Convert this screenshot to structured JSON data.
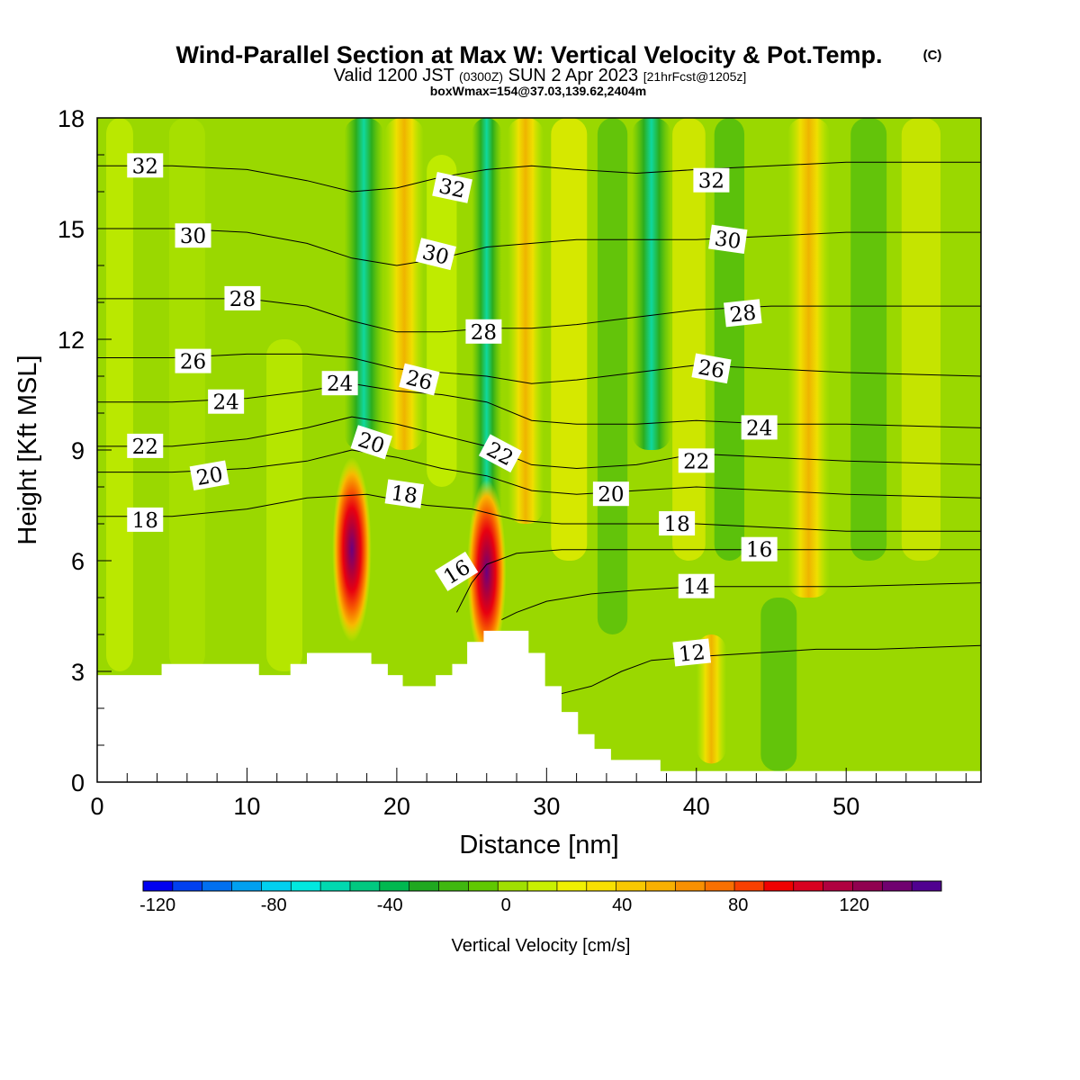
{
  "header": {
    "title": "Wind-Parallel Section at Max W: Vertical Velocity & Pot.Temp.",
    "copyright": "(C)",
    "valid_prefix": "Valid 1200 JST",
    "valid_zulu": "(0300Z)",
    "valid_date": "SUN 2 Apr 2023",
    "valid_forecast": "[21hrFcst@1205z]",
    "box_info": "boxWmax=154@37.03,139.62,2404m"
  },
  "chart_data": {
    "type": "heatmap",
    "xlabel": "Distance [nm]",
    "ylabel": "Height [Kft MSL]",
    "xlim": [
      0,
      59
    ],
    "ylim": [
      0,
      18
    ],
    "x_ticks": [
      0,
      10,
      20,
      30,
      40,
      50
    ],
    "y_ticks": [
      0,
      3,
      6,
      9,
      12,
      15,
      18
    ],
    "fill_variable": "Vertical Velocity [cm/s]",
    "contour_variable": "Potential Temperature",
    "colorbar": {
      "label": "Vertical Velocity [cm/s]",
      "min": -125,
      "max": 150,
      "ticks": [
        -120,
        -80,
        -40,
        0,
        40,
        80,
        120
      ],
      "colors": [
        "#0000f0",
        "#0040f0",
        "#0070f0",
        "#00a0f0",
        "#00d0f0",
        "#00e8e0",
        "#00d8b0",
        "#00c880",
        "#00b850",
        "#20a820",
        "#40b810",
        "#60c800",
        "#a0e000",
        "#c8f000",
        "#f0f000",
        "#f8e000",
        "#f8c800",
        "#f8b000",
        "#f89000",
        "#f87000",
        "#f84000",
        "#f00000",
        "#d80020",
        "#b00040",
        "#900050",
        "#700070",
        "#500090"
      ]
    },
    "terrain_profile": [
      [
        0,
        2.9
      ],
      [
        4.3,
        2.9
      ],
      [
        4.3,
        3.2
      ],
      [
        10.8,
        3.2
      ],
      [
        10.8,
        2.9
      ],
      [
        12.9,
        2.9
      ],
      [
        12.9,
        3.2
      ],
      [
        14.0,
        3.2
      ],
      [
        14.0,
        3.5
      ],
      [
        18.3,
        3.5
      ],
      [
        18.3,
        3.2
      ],
      [
        19.4,
        3.2
      ],
      [
        19.4,
        2.9
      ],
      [
        20.4,
        2.9
      ],
      [
        20.4,
        2.6
      ],
      [
        22.6,
        2.6
      ],
      [
        22.6,
        2.9
      ],
      [
        23.7,
        2.9
      ],
      [
        23.7,
        3.2
      ],
      [
        24.7,
        3.2
      ],
      [
        24.7,
        3.8
      ],
      [
        25.8,
        3.8
      ],
      [
        25.8,
        4.1
      ],
      [
        28.8,
        4.1
      ],
      [
        28.8,
        3.5
      ],
      [
        29.9,
        3.5
      ],
      [
        29.9,
        2.6
      ],
      [
        31.0,
        2.6
      ],
      [
        31.0,
        1.9
      ],
      [
        32.1,
        1.9
      ],
      [
        32.1,
        1.3
      ],
      [
        33.2,
        1.3
      ],
      [
        33.2,
        0.9
      ],
      [
        34.3,
        0.9
      ],
      [
        34.3,
        0.6
      ],
      [
        37.6,
        0.6
      ],
      [
        37.6,
        0.3
      ],
      [
        59,
        0.3
      ]
    ],
    "updrafts": [
      {
        "x": 17.0,
        "y": 6.3,
        "w": 154
      },
      {
        "x": 26.0,
        "y": 5.7,
        "w": 120
      }
    ],
    "isentropes": [
      {
        "value": 12,
        "points": [
          [
            31,
            2.4
          ],
          [
            33,
            2.6
          ],
          [
            35,
            3.0
          ],
          [
            37,
            3.3
          ],
          [
            40,
            3.4
          ],
          [
            44,
            3.5
          ],
          [
            48,
            3.6
          ],
          [
            52,
            3.6
          ],
          [
            59,
            3.7
          ]
        ]
      },
      {
        "value": 14,
        "points": [
          [
            27,
            4.4
          ],
          [
            28,
            4.6
          ],
          [
            30,
            4.9
          ],
          [
            33,
            5.1
          ],
          [
            36,
            5.2
          ],
          [
            40,
            5.3
          ],
          [
            45,
            5.3
          ],
          [
            50,
            5.3
          ],
          [
            59,
            5.4
          ]
        ]
      },
      {
        "value": 16,
        "points": [
          [
            24,
            4.6
          ],
          [
            25,
            5.4
          ],
          [
            26,
            5.9
          ],
          [
            28,
            6.2
          ],
          [
            31,
            6.3
          ],
          [
            35,
            6.3
          ],
          [
            40,
            6.3
          ],
          [
            45,
            6.3
          ],
          [
            50,
            6.3
          ],
          [
            59,
            6.3
          ]
        ]
      },
      {
        "value": 18,
        "points": [
          [
            0,
            7.2
          ],
          [
            5,
            7.2
          ],
          [
            10,
            7.4
          ],
          [
            14,
            7.7
          ],
          [
            18,
            7.8
          ],
          [
            22,
            7.5
          ],
          [
            25,
            7.4
          ],
          [
            28,
            7.1
          ],
          [
            31,
            7.0
          ],
          [
            35,
            7.0
          ],
          [
            40,
            7.0
          ],
          [
            45,
            6.9
          ],
          [
            50,
            6.8
          ],
          [
            59,
            6.8
          ]
        ]
      },
      {
        "value": 20,
        "points": [
          [
            0,
            8.4
          ],
          [
            5,
            8.4
          ],
          [
            10,
            8.5
          ],
          [
            14,
            8.7
          ],
          [
            17,
            9.0
          ],
          [
            20,
            8.8
          ],
          [
            23,
            8.5
          ],
          [
            26,
            8.3
          ],
          [
            29,
            7.9
          ],
          [
            32,
            7.8
          ],
          [
            36,
            7.9
          ],
          [
            40,
            8.0
          ],
          [
            45,
            7.9
          ],
          [
            50,
            7.8
          ],
          [
            59,
            7.7
          ]
        ]
      },
      {
        "value": 22,
        "points": [
          [
            0,
            9.1
          ],
          [
            5,
            9.1
          ],
          [
            10,
            9.3
          ],
          [
            14,
            9.6
          ],
          [
            17,
            9.9
          ],
          [
            20,
            9.7
          ],
          [
            23,
            9.4
          ],
          [
            26,
            9.1
          ],
          [
            29,
            8.6
          ],
          [
            32,
            8.5
          ],
          [
            36,
            8.6
          ],
          [
            40,
            8.9
          ],
          [
            45,
            8.8
          ],
          [
            50,
            8.7
          ],
          [
            59,
            8.6
          ]
        ]
      },
      {
        "value": 24,
        "points": [
          [
            0,
            10.3
          ],
          [
            5,
            10.3
          ],
          [
            10,
            10.4
          ],
          [
            14,
            10.6
          ],
          [
            17,
            10.8
          ],
          [
            20,
            10.6
          ],
          [
            23,
            10.5
          ],
          [
            26,
            10.3
          ],
          [
            29,
            9.8
          ],
          [
            32,
            9.7
          ],
          [
            36,
            9.7
          ],
          [
            40,
            9.8
          ],
          [
            45,
            9.7
          ],
          [
            50,
            9.7
          ],
          [
            59,
            9.6
          ]
        ]
      },
      {
        "value": 26,
        "points": [
          [
            0,
            11.5
          ],
          [
            5,
            11.5
          ],
          [
            10,
            11.6
          ],
          [
            14,
            11.6
          ],
          [
            17,
            11.5
          ],
          [
            20,
            11.2
          ],
          [
            23,
            11.1
          ],
          [
            26,
            11.0
          ],
          [
            29,
            10.8
          ],
          [
            32,
            10.9
          ],
          [
            36,
            11.1
          ],
          [
            40,
            11.3
          ],
          [
            45,
            11.2
          ],
          [
            50,
            11.1
          ],
          [
            59,
            11.0
          ]
        ]
      },
      {
        "value": 28,
        "points": [
          [
            0,
            13.1
          ],
          [
            5,
            13.1
          ],
          [
            10,
            13.1
          ],
          [
            14,
            12.9
          ],
          [
            17,
            12.5
          ],
          [
            20,
            12.2
          ],
          [
            23,
            12.2
          ],
          [
            26,
            12.3
          ],
          [
            29,
            12.3
          ],
          [
            32,
            12.4
          ],
          [
            36,
            12.6
          ],
          [
            40,
            12.8
          ],
          [
            45,
            12.9
          ],
          [
            50,
            12.9
          ],
          [
            59,
            12.9
          ]
        ]
      },
      {
        "value": 30,
        "points": [
          [
            0,
            15.0
          ],
          [
            5,
            15.0
          ],
          [
            10,
            14.9
          ],
          [
            14,
            14.6
          ],
          [
            17,
            14.2
          ],
          [
            20,
            14.0
          ],
          [
            23,
            14.2
          ],
          [
            26,
            14.5
          ],
          [
            29,
            14.6
          ],
          [
            32,
            14.7
          ],
          [
            36,
            14.7
          ],
          [
            40,
            14.7
          ],
          [
            45,
            14.8
          ],
          [
            50,
            14.9
          ],
          [
            59,
            14.9
          ]
        ]
      },
      {
        "value": 32,
        "points": [
          [
            0,
            16.7
          ],
          [
            5,
            16.7
          ],
          [
            10,
            16.6
          ],
          [
            14,
            16.3
          ],
          [
            17,
            16.0
          ],
          [
            20,
            16.1
          ],
          [
            23,
            16.4
          ],
          [
            26,
            16.6
          ],
          [
            29,
            16.7
          ],
          [
            32,
            16.6
          ],
          [
            36,
            16.5
          ],
          [
            40,
            16.6
          ],
          [
            45,
            16.7
          ],
          [
            50,
            16.8
          ],
          [
            59,
            16.8
          ]
        ]
      }
    ],
    "contour_labels": [
      {
        "text": "32",
        "x": 3.2,
        "y": 16.7,
        "rot": 0
      },
      {
        "text": "32",
        "x": 23.7,
        "y": 16.1,
        "rot": 12
      },
      {
        "text": "32",
        "x": 41.0,
        "y": 16.3,
        "rot": 0
      },
      {
        "text": "30",
        "x": 6.4,
        "y": 14.8,
        "rot": 0
      },
      {
        "text": "30",
        "x": 22.6,
        "y": 14.3,
        "rot": 14
      },
      {
        "text": "30",
        "x": 42.1,
        "y": 14.7,
        "rot": 8
      },
      {
        "text": "28",
        "x": 9.7,
        "y": 13.1,
        "rot": 0
      },
      {
        "text": "28",
        "x": 25.8,
        "y": 12.2,
        "rot": 0
      },
      {
        "text": "28",
        "x": 43.1,
        "y": 12.7,
        "rot": -6
      },
      {
        "text": "26",
        "x": 6.4,
        "y": 11.4,
        "rot": 0
      },
      {
        "text": "26",
        "x": 21.5,
        "y": 10.9,
        "rot": 14
      },
      {
        "text": "26",
        "x": 41.0,
        "y": 11.2,
        "rot": 10
      },
      {
        "text": "24",
        "x": 16.2,
        "y": 10.8,
        "rot": 0
      },
      {
        "text": "24",
        "x": 8.6,
        "y": 10.3,
        "rot": 0
      },
      {
        "text": "24",
        "x": 44.2,
        "y": 9.6,
        "rot": 0
      },
      {
        "text": "22",
        "x": 3.2,
        "y": 9.1,
        "rot": 0
      },
      {
        "text": "22",
        "x": 26.9,
        "y": 8.9,
        "rot": 28
      },
      {
        "text": "22",
        "x": 40.0,
        "y": 8.7,
        "rot": 0
      },
      {
        "text": "20",
        "x": 18.3,
        "y": 9.2,
        "rot": 18
      },
      {
        "text": "20",
        "x": 7.5,
        "y": 8.3,
        "rot": -10
      },
      {
        "text": "20",
        "x": 34.3,
        "y": 7.8,
        "rot": 0
      },
      {
        "text": "18",
        "x": 20.5,
        "y": 7.8,
        "rot": 8
      },
      {
        "text": "18",
        "x": 3.2,
        "y": 7.1,
        "rot": 0
      },
      {
        "text": "18",
        "x": 38.7,
        "y": 7.0,
        "rot": 0
      },
      {
        "text": "16",
        "x": 24.0,
        "y": 5.7,
        "rot": -32
      },
      {
        "text": "16",
        "x": 44.2,
        "y": 6.3,
        "rot": 0
      },
      {
        "text": "14",
        "x": 40.0,
        "y": 5.3,
        "rot": 0
      },
      {
        "text": "12",
        "x": 39.7,
        "y": 3.5,
        "rot": -6
      }
    ]
  }
}
